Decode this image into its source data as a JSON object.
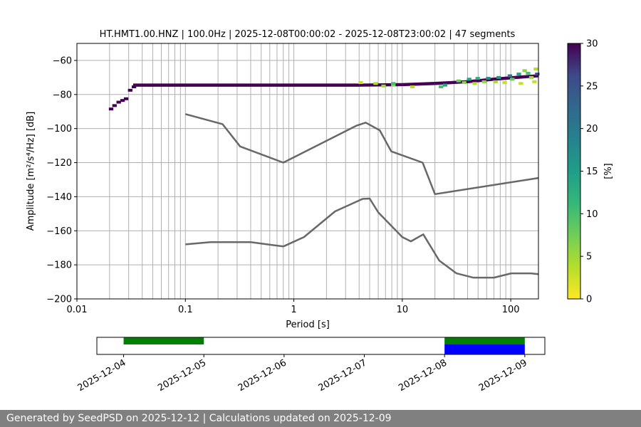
{
  "chart_data": [
    {
      "type": "heatmap",
      "title": "HT.HMT1.00.HNZ | 100.0Hz | 2025-12-08T00:00:02 - 2025-12-08T23:00:02 | 47 segments",
      "xlabel": "Period [s]",
      "ylabel": "Amplitude [m²/s⁴/Hz] [dB]",
      "xscale": "log",
      "xlim": [
        0.01,
        180
      ],
      "ylim": [
        -200,
        -50
      ],
      "grid": true,
      "xtick_labels": [
        "0.01",
        "0.1",
        "1",
        "10",
        "100"
      ],
      "ytick_labels": [
        "−60",
        "−80",
        "−100",
        "−120",
        "−140",
        "−160",
        "−180",
        "−200"
      ],
      "yticks": [
        -60,
        -80,
        -100,
        -120,
        -140,
        -160,
        -180,
        -200
      ],
      "colorbar": {
        "label": "[%]",
        "range": [
          0,
          30
        ],
        "ticks": [
          "0",
          "5",
          "10",
          "15",
          "20",
          "25",
          "30"
        ],
        "colormap": "viridis_r"
      },
      "psd_cells": [
        {
          "period": 0.02,
          "db": -88.5,
          "pct": 30
        },
        {
          "period": 0.0215,
          "db": -86.5,
          "pct": 30
        },
        {
          "period": 0.0235,
          "db": -84.5,
          "pct": 30
        },
        {
          "period": 0.0255,
          "db": -83.5,
          "pct": 30
        },
        {
          "period": 0.0275,
          "db": -82.5,
          "pct": 30
        },
        {
          "period": 0.03,
          "db": -77.5,
          "pct": 30
        },
        {
          "period": 0.0325,
          "db": -75.5,
          "pct": 30
        },
        {
          "period": 4.0,
          "db": -73.0,
          "pct": 3
        },
        {
          "period": 5.5,
          "db": -73.5,
          "pct": 4
        },
        {
          "period": 6.5,
          "db": -75.0,
          "pct": 5
        },
        {
          "period": 8.0,
          "db": -74.5,
          "pct": 6
        },
        {
          "period": 8.0,
          "db": -73.5,
          "pct": 10
        },
        {
          "period": 12.0,
          "db": -75.5,
          "pct": 4
        },
        {
          "period": 22.0,
          "db": -75.5,
          "pct": 10
        },
        {
          "period": 24.0,
          "db": -74.5,
          "pct": 14
        },
        {
          "period": 32.0,
          "db": -72.0,
          "pct": 8
        },
        {
          "period": 36.0,
          "db": -73.0,
          "pct": 6
        },
        {
          "period": 40.0,
          "db": -71.0,
          "pct": 14
        },
        {
          "period": 45.0,
          "db": -73.5,
          "pct": 4
        },
        {
          "period": 48.0,
          "db": -70.5,
          "pct": 12
        },
        {
          "period": 55.0,
          "db": -72.5,
          "pct": 6
        },
        {
          "period": 60.0,
          "db": -70.5,
          "pct": 18
        },
        {
          "period": 70.0,
          "db": -72.5,
          "pct": 5
        },
        {
          "period": 75.0,
          "db": -70.0,
          "pct": 16
        },
        {
          "period": 85.0,
          "db": -73.0,
          "pct": 3
        },
        {
          "period": 95.0,
          "db": -69.0,
          "pct": 20
        },
        {
          "period": 100.0,
          "db": -71.0,
          "pct": 8
        },
        {
          "period": 115.0,
          "db": -68.0,
          "pct": 14
        },
        {
          "period": 120.0,
          "db": -73.5,
          "pct": 3
        },
        {
          "period": 130.0,
          "db": -66.0,
          "pct": 6
        },
        {
          "period": 140.0,
          "db": -67.5,
          "pct": 10
        },
        {
          "period": 150.0,
          "db": -70.0,
          "pct": 5
        },
        {
          "period": 160.0,
          "db": -72.5,
          "pct": 3
        },
        {
          "period": 165.0,
          "db": -65.0,
          "pct": 4
        },
        {
          "period": 170.0,
          "db": -68.0,
          "pct": 25
        }
      ],
      "psd_ridge": [
        {
          "period": 0.033,
          "db": -74.5
        },
        {
          "period": 4.0,
          "db": -74.5
        },
        {
          "period": 10.0,
          "db": -74.2
        },
        {
          "period": 20.0,
          "db": -73.5
        },
        {
          "period": 40.0,
          "db": -72.5
        },
        {
          "period": 70.0,
          "db": -71.0
        },
        {
          "period": 110.0,
          "db": -70.0
        },
        {
          "period": 180.0,
          "db": -69.0
        }
      ],
      "series": [
        {
          "x": [
            0.1,
            0.22,
            0.32,
            0.8,
            3.8,
            4.6,
            6.2,
            7.9,
            15.4,
            20.0,
            180.0
          ],
          "y": [
            -91.5,
            -97.4,
            -110.5,
            -120.0,
            -98.2,
            -96.5,
            -101.0,
            -113.4,
            -120.0,
            -138.5,
            -129.0
          ]
        },
        {
          "x": [
            0.1,
            0.17,
            0.4,
            0.8,
            1.24,
            2.4,
            4.3,
            5.0,
            6.0,
            10.0,
            12.0,
            15.6,
            21.9,
            31.6,
            45.0,
            70.0,
            101.0,
            154.0,
            180.0
          ],
          "y": [
            -168.0,
            -166.7,
            -166.7,
            -169.2,
            -163.7,
            -148.6,
            -141.3,
            -141.1,
            -149.2,
            -163.7,
            -166.2,
            -162.1,
            -177.5,
            -185.0,
            -187.5,
            -187.5,
            -185.0,
            -185.0,
            -185.5
          ]
        }
      ]
    },
    {
      "type": "bar",
      "subtitle_role": "data availability timeline",
      "xlim": [
        "2025-12-03T16:00",
        "2025-12-09T06:00"
      ],
      "xtick_labels": [
        "2025-12-04",
        "2025-12-05",
        "2025-12-06",
        "2025-12-07",
        "2025-12-08",
        "2025-12-09"
      ],
      "xticks": [
        "2025-12-04",
        "2025-12-05",
        "2025-12-06",
        "2025-12-07",
        "2025-12-08",
        "2025-12-09"
      ],
      "bars": [
        {
          "start": "2025-12-04T00:00",
          "end": "2025-12-05T00:00",
          "lane": "top",
          "color": "#008000"
        },
        {
          "start": "2025-12-08T00:00",
          "end": "2025-12-09T00:00",
          "lane": "top",
          "color": "#008000"
        },
        {
          "start": "2025-12-08T00:00",
          "end": "2025-12-09T00:00",
          "lane": "bottom",
          "color": "#0000ff"
        }
      ]
    }
  ],
  "colors": {
    "model_line": "#686868",
    "grid": "#b0b0b0",
    "footer_background": "#808080",
    "footer_text": "#ffffff"
  },
  "footer": {
    "text": "Generated by SeedPSD on 2025-12-12 | Calculations updated on 2025-12-09"
  }
}
